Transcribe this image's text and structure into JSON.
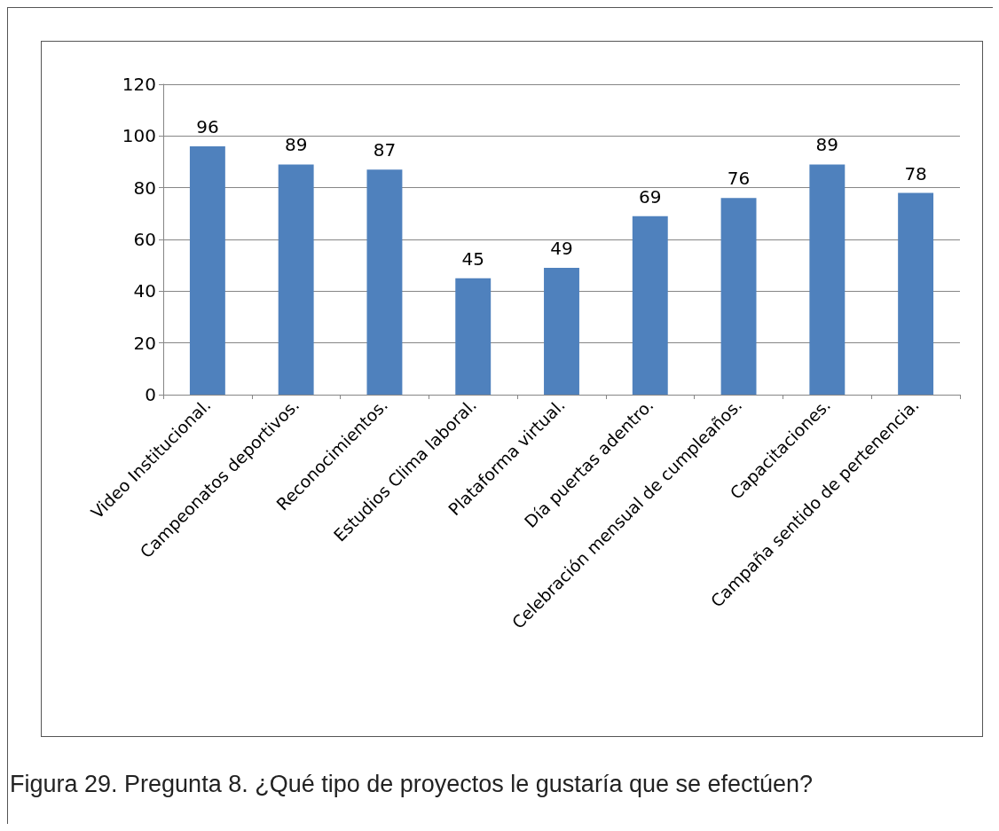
{
  "chart_data": {
    "type": "bar",
    "categories": [
      "Video Institucional.",
      "Campeonatos deportivos.",
      "Reconocimientos.",
      "Estudios Clima laboral.",
      "Plataforma virtual.",
      "Día puertas adentro.",
      "Celebración mensual de cumpleaños.",
      "Capacitaciones.",
      "Campaña sentido de pertenencia."
    ],
    "values": [
      96,
      89,
      87,
      45,
      49,
      69,
      76,
      89,
      78
    ],
    "color": "#4f81bd",
    "ylim": [
      0,
      120
    ],
    "yticks": [
      0,
      20,
      40,
      60,
      80,
      100,
      120
    ],
    "grid": "y",
    "data_labels": true,
    "annotations": [
      "Figura 29. Pregunta 8. ¿Qué tipo de proyectos le gustaría que se efectúen?"
    ]
  }
}
